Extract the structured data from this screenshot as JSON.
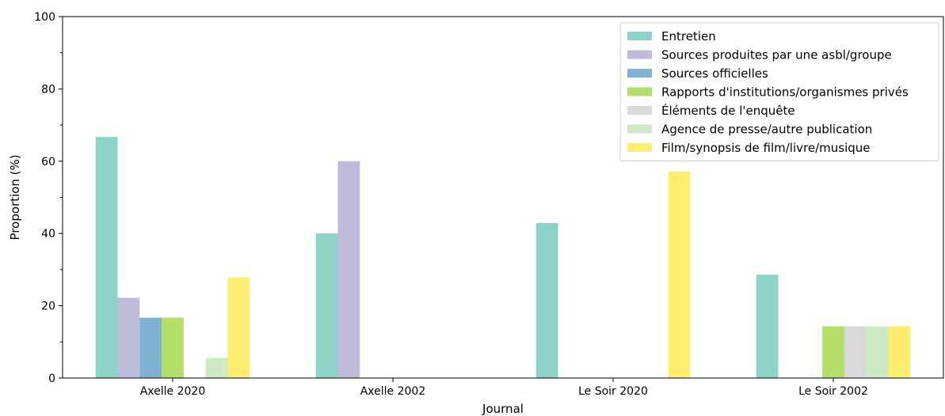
{
  "chart_data": {
    "type": "bar",
    "title": "",
    "xlabel": "Journal",
    "ylabel": "Proportion (%)",
    "ylim": [
      0,
      100
    ],
    "yticks": [
      0,
      20,
      40,
      60,
      80,
      100
    ],
    "grid": false,
    "legend_position": "top-right",
    "categories": [
      "Axelle 2020",
      "Axelle 2002",
      "Le Soir 2020",
      "Le Soir 2002"
    ],
    "series": [
      {
        "name": "Entretien",
        "color": "#8dd3c7",
        "values": [
          66.7,
          40.0,
          42.9,
          28.6
        ]
      },
      {
        "name": "Sources produites par une asbl/groupe",
        "color": "#bebada",
        "values": [
          22.2,
          60.0,
          0,
          0
        ]
      },
      {
        "name": "Sources officielles",
        "color": "#80b1d3",
        "values": [
          16.7,
          0,
          0,
          0
        ]
      },
      {
        "name": "Rapports d'institutions/organismes privés",
        "color": "#b3de69",
        "values": [
          16.7,
          0,
          0,
          14.3
        ]
      },
      {
        "name": "Éléments de l'enquête",
        "color": "#d9d9d9",
        "values": [
          0,
          0,
          0,
          14.3
        ]
      },
      {
        "name": "Agence de presse/autre publication",
        "color": "#ccebc5",
        "values": [
          5.6,
          0,
          0,
          14.3
        ]
      },
      {
        "name": "Film/synopsis de film/livre/musique",
        "color": "#ffed6f",
        "values": [
          27.8,
          0,
          57.1,
          14.3
        ]
      }
    ]
  }
}
